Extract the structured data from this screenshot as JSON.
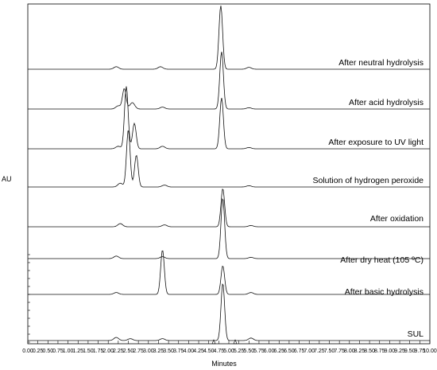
{
  "chart_data": {
    "type": "line",
    "xlabel": "Minutes",
    "ylabel": "AU",
    "xlim": [
      0.0,
      10.0
    ],
    "x_ticks": [
      "0.00",
      "0.25",
      "0.50",
      "0.75",
      "1.00",
      "1.25",
      "1.50",
      "1.75",
      "2.00",
      "2.25",
      "2.50",
      "2.75",
      "3.00",
      "3.25",
      "3.50",
      "3.75",
      "4.00",
      "4.25",
      "4.50",
      "4.75",
      "5.00",
      "5.25",
      "5.50",
      "5.75",
      "6.00",
      "6.25",
      "6.50",
      "6.75",
      "7.00",
      "7.25",
      "7.50",
      "7.75",
      "8.00",
      "8.25",
      "8.50",
      "8.75",
      "9.00",
      "9.25",
      "9.50",
      "9.75",
      "10.00"
    ],
    "grid": false,
    "legend": "none",
    "series": [
      {
        "name": "After neutral hydrolysis",
        "peaks": [
          [
            2.2,
            0.04
          ],
          [
            3.3,
            0.04
          ],
          [
            4.8,
            1.0
          ],
          [
            5.5,
            0.03
          ]
        ]
      },
      {
        "name": "After acid hydrolysis",
        "peaks": [
          [
            2.25,
            0.05
          ],
          [
            2.4,
            0.32
          ],
          [
            2.6,
            0.1
          ],
          [
            3.35,
            0.03
          ],
          [
            4.82,
            0.9
          ],
          [
            5.5,
            0.02
          ]
        ]
      },
      {
        "name": "After exposure to UV light",
        "peaks": [
          [
            2.25,
            0.04
          ],
          [
            2.45,
            0.98
          ],
          [
            2.65,
            0.4
          ],
          [
            3.35,
            0.04
          ],
          [
            4.82,
            0.8
          ],
          [
            5.5,
            0.02
          ]
        ]
      },
      {
        "name": "Solution of hydrogen peroxide",
        "peaks": [
          [
            2.3,
            0.06
          ],
          [
            2.5,
            0.9
          ],
          [
            2.7,
            0.5
          ],
          [
            3.4,
            0.03
          ],
          [
            5.5,
            0.02
          ]
        ]
      },
      {
        "name": "After oxidation",
        "peaks": [
          [
            2.3,
            0.05
          ],
          [
            3.4,
            0.03
          ],
          [
            4.85,
            0.6
          ],
          [
            5.55,
            0.02
          ]
        ]
      },
      {
        "name": "After dry heat (105 ºC)",
        "peaks": [
          [
            2.2,
            0.04
          ],
          [
            3.35,
            0.03
          ],
          [
            4.85,
            0.95
          ],
          [
            5.55,
            0.02
          ]
        ]
      },
      {
        "name": "After basic hydrolysis",
        "peaks": [
          [
            2.2,
            0.03
          ],
          [
            3.35,
            0.7
          ],
          [
            4.85,
            0.45
          ],
          [
            5.55,
            0.03
          ]
        ]
      },
      {
        "name": "SUL",
        "peaks": [
          [
            2.2,
            0.05
          ],
          [
            2.55,
            0.03
          ],
          [
            3.35,
            0.03
          ],
          [
            4.85,
            0.9
          ],
          [
            5.55,
            0.04
          ]
        ]
      }
    ]
  }
}
